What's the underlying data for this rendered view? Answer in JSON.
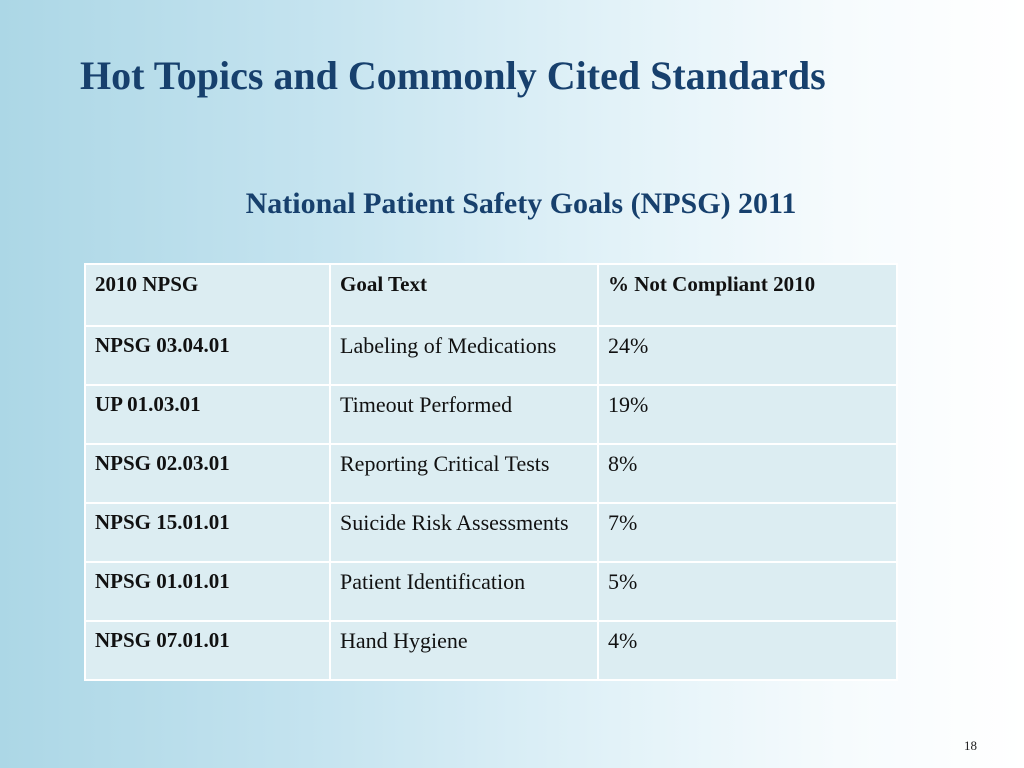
{
  "slide": {
    "title": "Hot Topics and Commonly Cited Standards",
    "subtitle": "National Patient Safety Goals (NPSG) 2011",
    "page_number": "18"
  },
  "table": {
    "headers": [
      "2010 NPSG",
      "Goal Text",
      "% Not Compliant 2010"
    ],
    "rows": [
      [
        "NPSG 03.04.01",
        "Labeling of Medications",
        "24%"
      ],
      [
        "UP 01.03.01",
        "Timeout Performed",
        "19%"
      ],
      [
        "NPSG 02.03.01",
        "Reporting Critical Tests",
        "8%"
      ],
      [
        "NPSG 15.01.01",
        "Suicide Risk Assessments",
        "7%"
      ],
      [
        "NPSG 01.01.01",
        "Patient Identification",
        "5%"
      ],
      [
        "NPSG 07.01.01",
        "Hand Hygiene",
        "4%"
      ]
    ]
  },
  "colors": {
    "title": "#17406d",
    "cell_background": "#dcedf2",
    "cell_border": "#ffffff"
  }
}
